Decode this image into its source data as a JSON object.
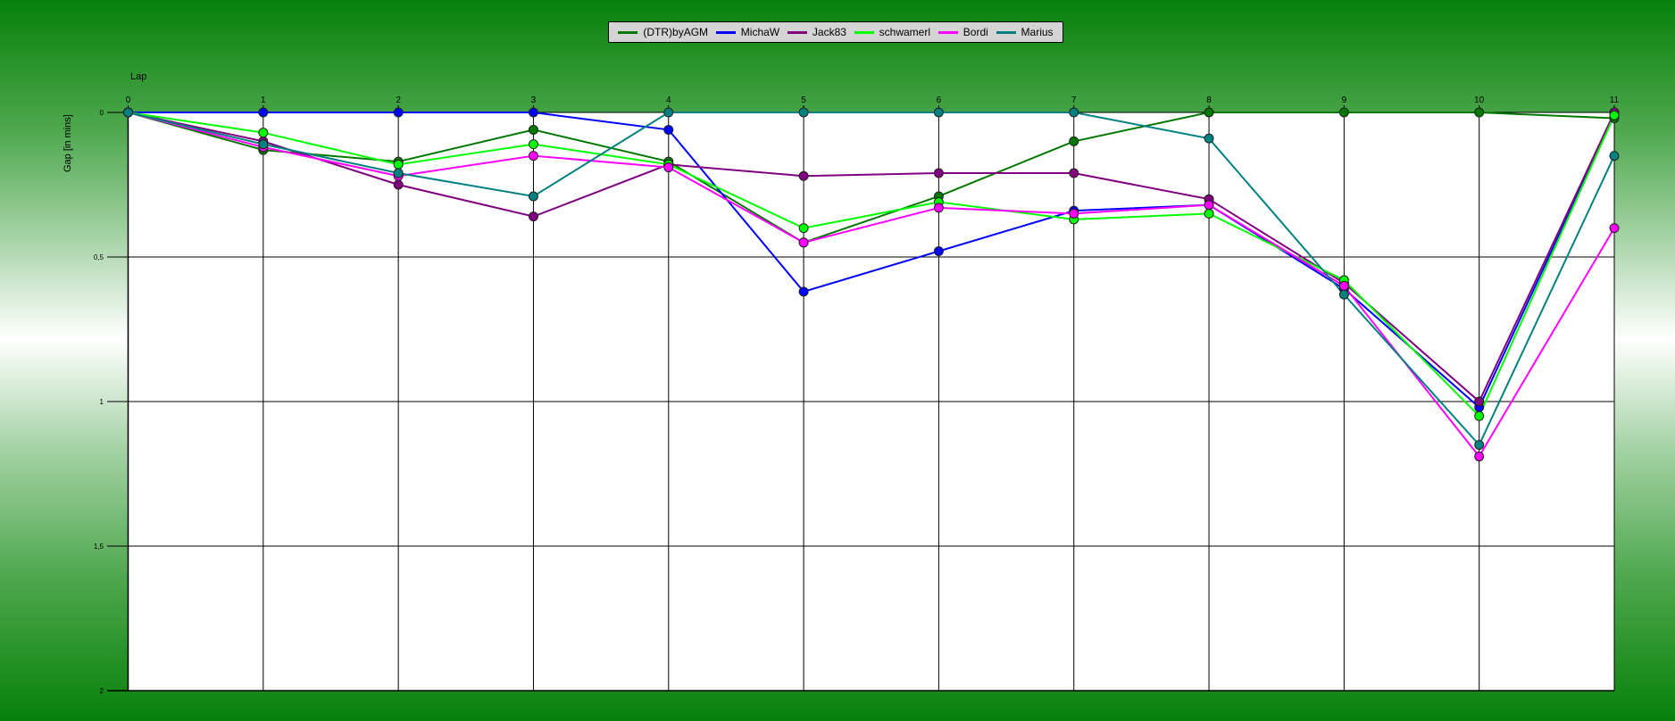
{
  "chart_data": {
    "type": "line",
    "title": "",
    "xlabel": "Lap",
    "ylabel": "Gap [in mins]",
    "x": [
      0,
      1,
      2,
      3,
      4,
      5,
      6,
      7,
      8,
      9,
      10,
      11
    ],
    "ylim": [
      0,
      2
    ],
    "y_inverted": true,
    "y_ticks": [
      "0",
      "0,5",
      "1",
      "1,5",
      "2"
    ],
    "y_tick_values": [
      0,
      0.5,
      1,
      1.5,
      2
    ],
    "grid": true,
    "legend_position": "top-center",
    "series": [
      {
        "name": "(DTR)byAGM",
        "color": "#007800",
        "values": [
          0,
          0.13,
          0.17,
          0.06,
          0.17,
          0.45,
          0.29,
          0.1,
          0,
          0,
          0,
          0.02
        ]
      },
      {
        "name": "MichaW",
        "color": "#0000ff",
        "values": [
          0,
          0,
          0,
          0,
          0.06,
          0.62,
          0.48,
          0.34,
          0.32,
          0.61,
          1.02,
          0.01
        ]
      },
      {
        "name": "Jack83",
        "color": "#800080",
        "values": [
          0,
          0.1,
          0.25,
          0.36,
          0.18,
          0.22,
          0.21,
          0.21,
          0.3,
          0.59,
          1.0,
          0
        ]
      },
      {
        "name": "schwamerl",
        "color": "#00ff00",
        "values": [
          0,
          0.07,
          0.18,
          0.11,
          0.18,
          0.4,
          0.31,
          0.37,
          0.35,
          0.58,
          1.05,
          0.01
        ]
      },
      {
        "name": "Bordi",
        "color": "#ff00ff",
        "values": [
          0,
          0.12,
          0.22,
          0.15,
          0.19,
          0.45,
          0.33,
          0.35,
          0.32,
          0.6,
          1.19,
          0.4
        ]
      },
      {
        "name": "Marius",
        "color": "#008080",
        "values": [
          0,
          0.11,
          0.21,
          0.29,
          0,
          0,
          0,
          0,
          0.09,
          0.63,
          1.15,
          0.15
        ]
      }
    ]
  }
}
